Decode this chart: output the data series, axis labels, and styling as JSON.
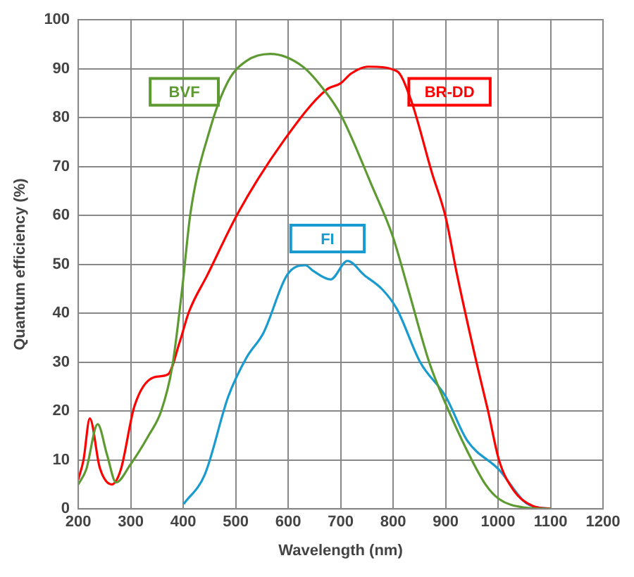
{
  "chart_data": {
    "type": "line",
    "xlabel": "Wavelength (nm)",
    "ylabel": "Quantum efficiency (%)",
    "xlim": [
      200,
      1200
    ],
    "xticks": [
      200,
      300,
      400,
      500,
      600,
      700,
      800,
      900,
      1000,
      1100,
      1200
    ],
    "ylim": [
      0,
      100
    ],
    "yticks": [
      0,
      10,
      20,
      30,
      40,
      50,
      60,
      70,
      80,
      90,
      100
    ],
    "grid": true,
    "legend": false,
    "marker": "none",
    "line_style": "solid",
    "series": [
      {
        "name": "BVF",
        "color": "#5e9a32",
        "x": [
          200,
          215,
          237,
          255,
          272,
          299,
          334,
          358,
          379,
          398,
          414,
          451,
          486,
          521,
          566,
          628,
          673,
          700,
          761,
          799,
          829,
          869,
          900,
          941,
          976,
          1002,
          1048,
          1100
        ],
        "values": [
          5,
          8,
          17.3,
          11,
          5.4,
          9,
          15,
          20,
          29,
          45,
          60.6,
          77.6,
          87.5,
          91.6,
          93,
          90.4,
          85,
          80.6,
          65.7,
          55.8,
          44.8,
          29.9,
          21.5,
          11.9,
          5,
          2,
          0.3,
          0
        ]
      },
      {
        "name": "BR-DD",
        "color": "#ff0000",
        "x": [
          200,
          210,
          222,
          241,
          264,
          281,
          307,
          344,
          371,
          393,
          411,
          446,
          505,
          593,
          673,
          700,
          720,
          753,
          807,
          834,
          874,
          900,
          922,
          959,
          981,
          1002,
          1029,
          1066,
          1100
        ],
        "values": [
          6,
          10,
          18.5,
          8.4,
          5,
          8,
          21,
          26.9,
          27.5,
          34,
          40.3,
          47.8,
          60.6,
          75.5,
          85.7,
          87,
          89,
          90.4,
          89.5,
          83.6,
          68.7,
          59.7,
          47.8,
          29.9,
          20,
          9.9,
          3.9,
          0.6,
          0
        ]
      },
      {
        "name": "FI",
        "color": "#1a9bcf",
        "x": [
          401,
          441,
          486,
          521,
          553,
          598,
          633,
          647,
          681,
          713,
          745,
          780,
          807,
          852,
          900,
          941,
          1002,
          1056,
          1100
        ],
        "values": [
          1,
          7,
          23,
          31,
          36,
          47.8,
          49.8,
          48.7,
          46.9,
          50.7,
          47.8,
          44.8,
          40.9,
          29.9,
          23,
          14,
          8,
          1,
          0
        ]
      }
    ]
  }
}
